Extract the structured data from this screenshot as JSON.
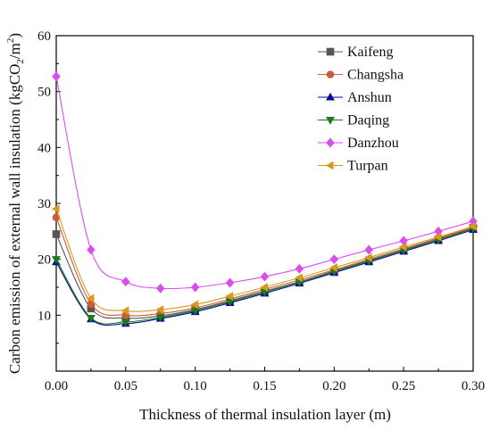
{
  "chart_data": {
    "type": "line",
    "xlabel": "Thickness of thermal insulation layer (m)",
    "ylabel_prefix": "Carbon emission of external wall insulation (kgCO",
    "ylabel_sub": "2",
    "ylabel_mid": "/m",
    "ylabel_sup": "2",
    "ylabel_suffix": ")",
    "xlim": [
      0,
      0.3
    ],
    "ylim": [
      0,
      60
    ],
    "x_ticks": [
      0.0,
      0.05,
      0.1,
      0.15,
      0.2,
      0.25,
      0.3
    ],
    "x_tick_labels": [
      "0.00",
      "0.05",
      "0.10",
      "0.15",
      "0.20",
      "0.25",
      "0.30"
    ],
    "y_ticks": [
      10,
      20,
      30,
      40,
      50,
      60
    ],
    "y_tick_labels": [
      "10",
      "20",
      "30",
      "40",
      "50",
      "60"
    ],
    "legend_position": "top-right",
    "grid": false,
    "x": [
      0.0,
      0.025,
      0.05,
      0.075,
      0.1,
      0.125,
      0.15,
      0.175,
      0.2,
      0.225,
      0.25,
      0.275,
      0.3
    ],
    "series": [
      {
        "name": "Kaifeng",
        "marker": "square",
        "color": "#555555",
        "values": [
          24.5,
          11.2,
          9.5,
          9.9,
          11.0,
          12.6,
          14.3,
          16.0,
          17.9,
          19.8,
          21.7,
          23.6,
          25.6
        ]
      },
      {
        "name": "Changsha",
        "marker": "circle",
        "color": "#cc5a3c",
        "values": [
          27.5,
          12.0,
          10.0,
          10.3,
          11.3,
          12.9,
          14.6,
          16.3,
          18.1,
          20.0,
          21.9,
          23.8,
          25.7
        ]
      },
      {
        "name": "Anshun",
        "marker": "triangle-up",
        "color": "#0a0a9a",
        "values": [
          19.5,
          9.3,
          8.5,
          9.4,
          10.6,
          12.2,
          13.9,
          15.7,
          17.6,
          19.5,
          21.4,
          23.3,
          25.3
        ]
      },
      {
        "name": "Daqing",
        "marker": "triangle-down",
        "color": "#1a7a1a",
        "values": [
          20.0,
          9.5,
          8.8,
          9.6,
          10.8,
          12.4,
          14.1,
          15.9,
          17.8,
          19.7,
          21.6,
          23.5,
          25.5
        ]
      },
      {
        "name": "Danzhou",
        "marker": "diamond",
        "color": "#d94ef0",
        "values": [
          52.7,
          21.7,
          16.0,
          14.8,
          15.0,
          15.8,
          16.9,
          18.3,
          20.0,
          21.7,
          23.3,
          25.0,
          26.8
        ]
      },
      {
        "name": "Turpan",
        "marker": "triangle-left",
        "color": "#d99a1a",
        "values": [
          29.0,
          13.0,
          10.8,
          11.0,
          11.9,
          13.4,
          15.0,
          16.7,
          18.5,
          20.3,
          22.2,
          24.0,
          25.9
        ]
      }
    ]
  }
}
